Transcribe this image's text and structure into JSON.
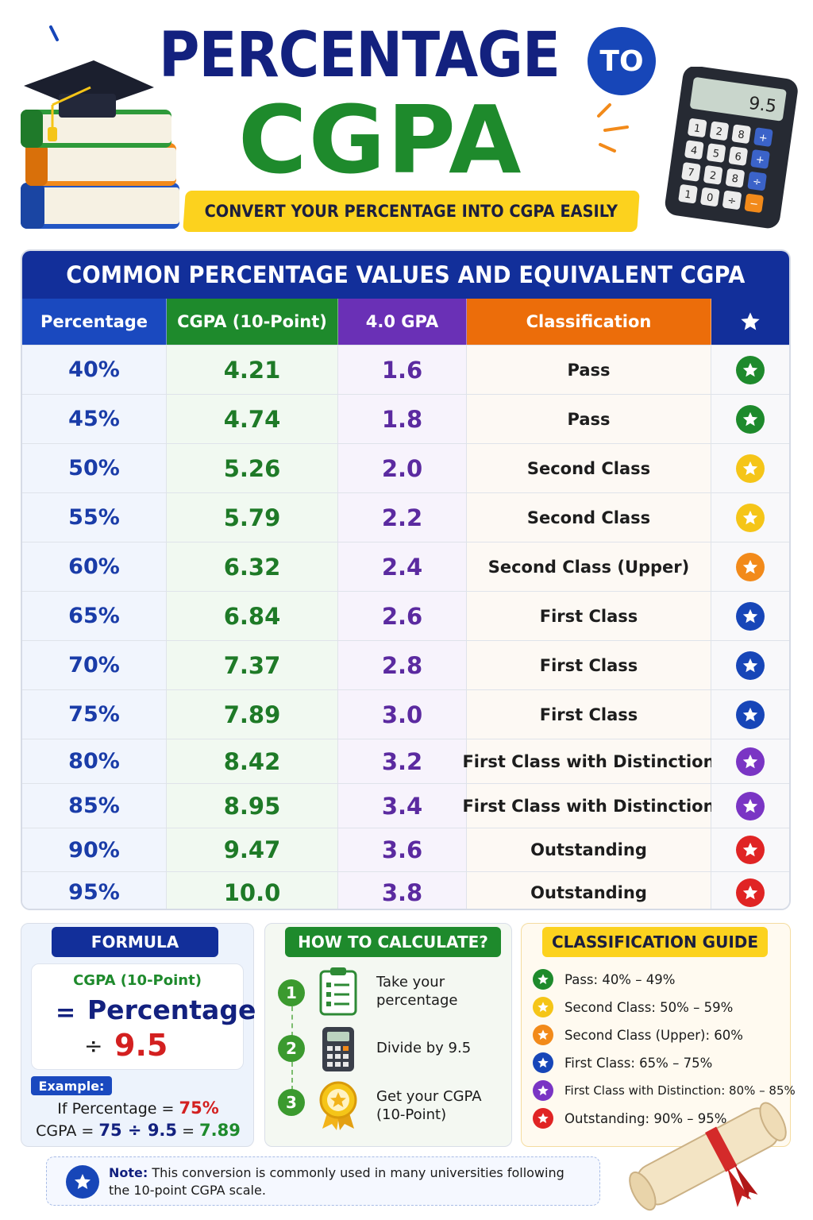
{
  "header": {
    "title_line1": "PERCENTAGE",
    "to_badge": "TO",
    "title_line2": "CGPA",
    "subtitle": "CONVERT YOUR PERCENTAGE INTO CGPA EASILY",
    "calculator_display": "9.5",
    "calculator_keys": [
      "1",
      "2",
      "8",
      "+",
      "4",
      "5",
      "6",
      "+",
      "7",
      "2",
      "8",
      "÷",
      "1",
      "0",
      "÷",
      "−"
    ]
  },
  "table": {
    "title": "COMMON PERCENTAGE VALUES AND EQUIVALENT CGPA",
    "headers": {
      "percentage": "Percentage",
      "cgpa": "CGPA (10-Point)",
      "gpa4": "4.0 GPA",
      "classification": "Classification",
      "star_icon": "star-icon"
    },
    "rows": [
      {
        "percentage": "40%",
        "cgpa": "4.21",
        "gpa4": "1.6",
        "classification": "Pass",
        "star_color": "#1e8a2c"
      },
      {
        "percentage": "45%",
        "cgpa": "4.74",
        "gpa4": "1.8",
        "classification": "Pass",
        "star_color": "#1e8a2c"
      },
      {
        "percentage": "50%",
        "cgpa": "5.26",
        "gpa4": "2.0",
        "classification": "Second Class",
        "star_color": "#f5c518"
      },
      {
        "percentage": "55%",
        "cgpa": "5.79",
        "gpa4": "2.2",
        "classification": "Second Class",
        "star_color": "#f5c518"
      },
      {
        "percentage": "60%",
        "cgpa": "6.32",
        "gpa4": "2.4",
        "classification": "Second Class (Upper)",
        "star_color": "#f28a1a"
      },
      {
        "percentage": "65%",
        "cgpa": "6.84",
        "gpa4": "2.6",
        "classification": "First Class",
        "star_color": "#1746b8"
      },
      {
        "percentage": "70%",
        "cgpa": "7.37",
        "gpa4": "2.8",
        "classification": "First Class",
        "star_color": "#1746b8"
      },
      {
        "percentage": "75%",
        "cgpa": "7.89",
        "gpa4": "3.0",
        "classification": "First Class",
        "star_color": "#1746b8"
      },
      {
        "percentage": "80%",
        "cgpa": "8.42",
        "gpa4": "3.2",
        "classification": "First Class with Distinction",
        "star_color": "#7a35c4"
      },
      {
        "percentage": "85%",
        "cgpa": "8.95",
        "gpa4": "3.4",
        "classification": "First Class with Distinction",
        "star_color": "#7a35c4"
      },
      {
        "percentage": "90%",
        "cgpa": "9.47",
        "gpa4": "3.6",
        "classification": "Outstanding",
        "star_color": "#e02424"
      },
      {
        "percentage": "95%",
        "cgpa": "10.0",
        "gpa4": "3.8",
        "classification": "Outstanding",
        "star_color": "#e02424"
      }
    ]
  },
  "formula": {
    "badge": "FORMULA",
    "top_label": "CGPA (10-Point)",
    "equals": "=",
    "percentage_word": "Percentage",
    "divide": "÷",
    "divisor": "9.5",
    "example_badge": "Example:",
    "example_line1_prefix": "If Percentage =",
    "example_line1_value": "75%",
    "example_line2_prefix": "CGPA =",
    "example_line2_expr": "75 ÷ 9.5",
    "example_line2_eq": "=",
    "example_line2_result": "7.89"
  },
  "how_to": {
    "badge": "HOW TO CALCULATE?",
    "steps": [
      {
        "num": "1",
        "text": "Take your percentage",
        "icon": "clipboard-icon"
      },
      {
        "num": "2",
        "text": "Divide by 9.5",
        "icon": "calculator-icon"
      },
      {
        "num": "3",
        "text": "Get your CGPA (10-Point)",
        "icon": "medal-icon"
      }
    ]
  },
  "guide": {
    "badge": "CLASSIFICATION GUIDE",
    "items": [
      {
        "text": "Pass: 40% – 49%",
        "color": "#1e8a2c"
      },
      {
        "text": "Second Class: 50% – 59%",
        "color": "#f5c518"
      },
      {
        "text": "Second Class (Upper): 60%",
        "color": "#f28a1a"
      },
      {
        "text": "First Class: 65% – 75%",
        "color": "#1746b8"
      },
      {
        "text": "First Class with Distinction: 80% – 85%",
        "color": "#7a35c4"
      },
      {
        "text": "Outstanding: 90% – 95%",
        "color": "#e02424"
      }
    ]
  },
  "note": {
    "label": "Note:",
    "text": "This conversion is commonly used in many universities following the 10-point CGPA scale."
  },
  "colors": {
    "navy": "#13217f",
    "green": "#1e8a2c",
    "purple": "#6a30b6",
    "orange": "#ec6d0a",
    "yellow": "#fcd21e",
    "red": "#d32020"
  }
}
